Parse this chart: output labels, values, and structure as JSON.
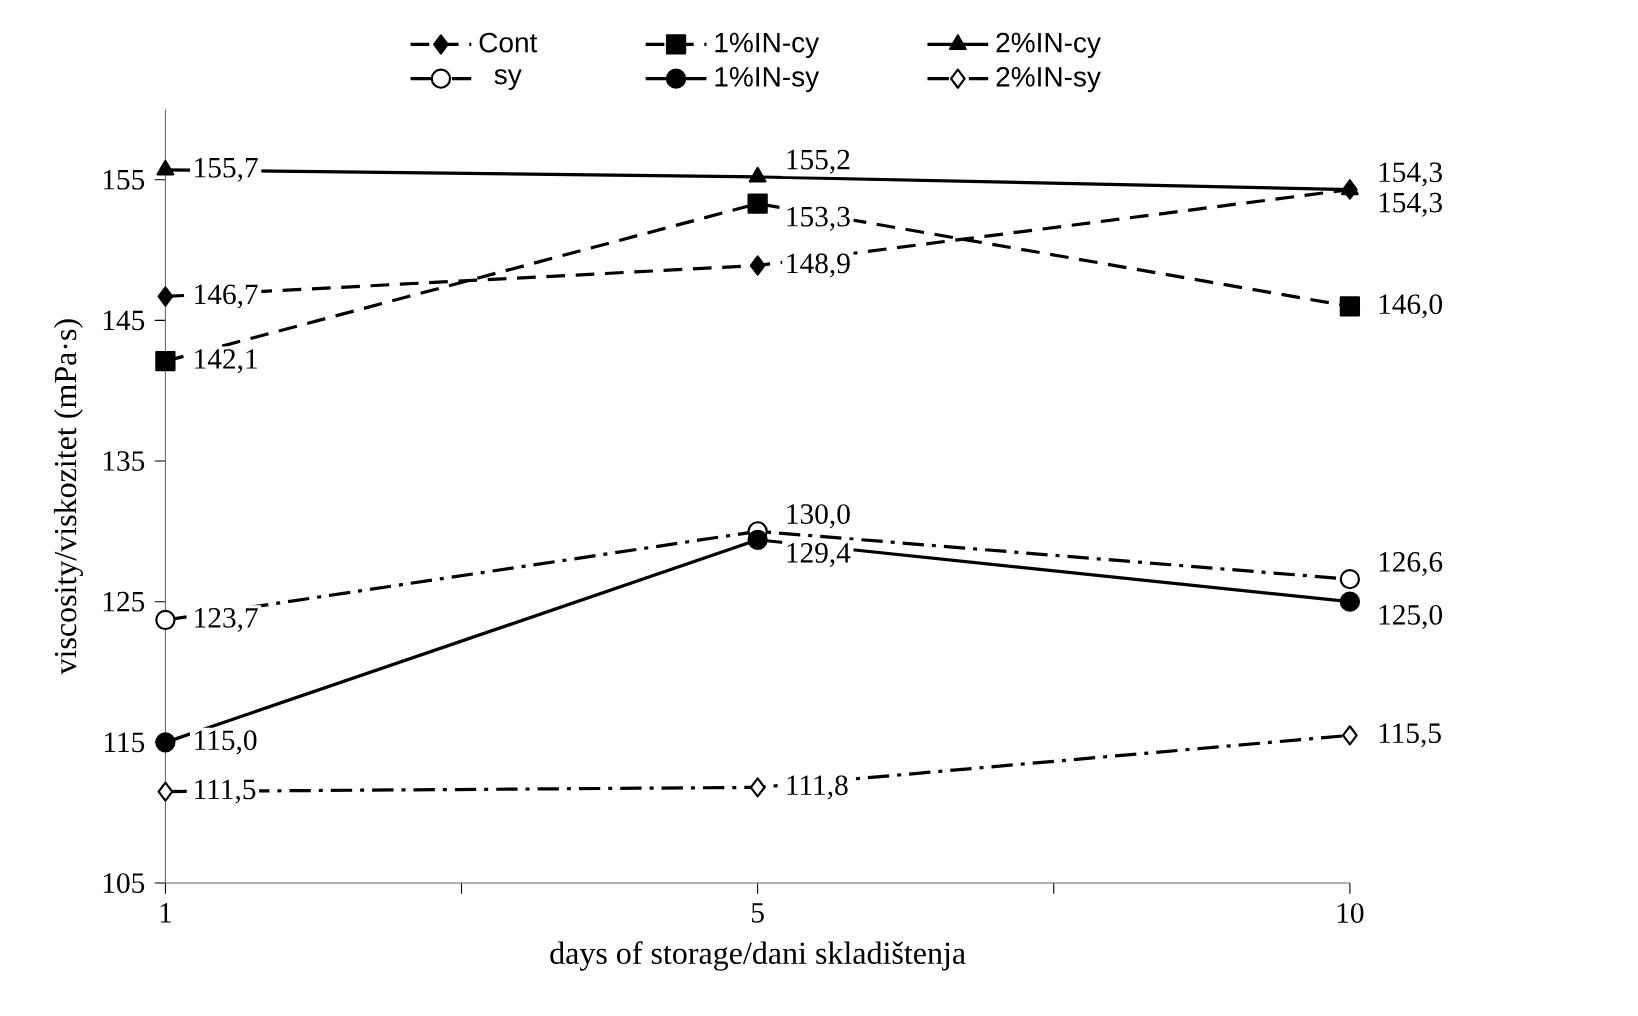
{
  "chart_data": {
    "type": "line",
    "xlabel": "days of storage/dani skladištenja",
    "ylabel": "viscosity/viskozitet (mPa·s)",
    "categories": [
      "1",
      "5",
      "10"
    ],
    "ylim": [
      105,
      160
    ],
    "yticks": [
      105,
      115,
      125,
      135,
      145,
      155
    ],
    "legend": "top",
    "grid": false,
    "series": [
      {
        "name": "Cont",
        "color": "#000000",
        "marker": "diamond",
        "line_style": "dashed",
        "values": [
          146.7,
          148.9,
          154.3
        ],
        "value_labels": [
          "146,7",
          "148,9",
          "154,3"
        ]
      },
      {
        "name": "1%IN-cy",
        "color": "#000000",
        "marker": "square",
        "line_style": "dashed",
        "values": [
          142.1,
          153.3,
          146.0
        ],
        "value_labels": [
          "142,1",
          "153,3",
          "146,0"
        ]
      },
      {
        "name": "2%IN-cy",
        "color": "#000000",
        "marker": "triangle",
        "line_style": "solid",
        "values": [
          155.7,
          155.2,
          154.3
        ],
        "value_labels": [
          "155,7",
          "155,2",
          "154,3"
        ]
      },
      {
        "name": "sy",
        "color": "#000000",
        "marker": "circle-open",
        "line_style": "dashdot",
        "values": [
          123.7,
          130.0,
          126.6
        ],
        "value_labels": [
          "123,7",
          "130,0",
          "126,6"
        ]
      },
      {
        "name": "1%IN-sy",
        "color": "#000000",
        "marker": "circle",
        "line_style": "solid",
        "values": [
          115.0,
          129.4,
          125.0
        ],
        "value_labels": [
          "115,0",
          "129,4",
          "125,0"
        ]
      },
      {
        "name": "2%IN-sy",
        "color": "#000000",
        "marker": "diamond-open",
        "line_style": "dashdot",
        "values": [
          111.5,
          111.8,
          115.5
        ],
        "value_labels": [
          "111,5",
          "111,8",
          "115,5"
        ]
      }
    ]
  }
}
